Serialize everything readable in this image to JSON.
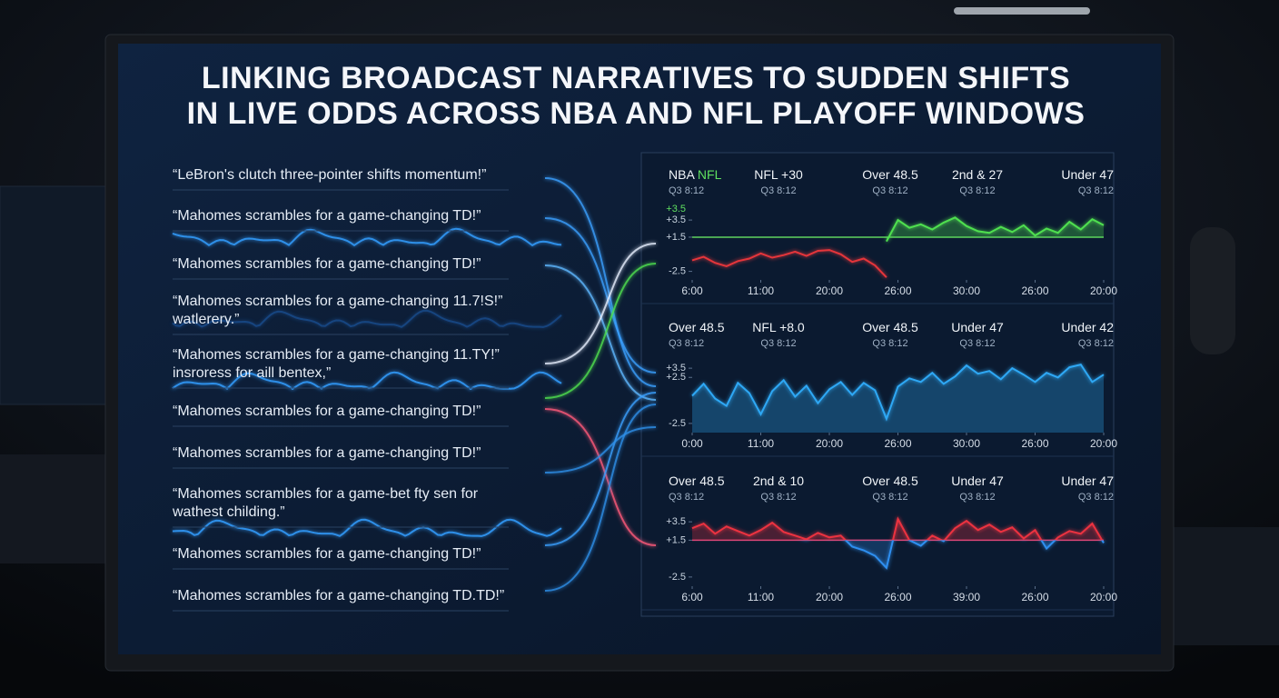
{
  "title": [
    "LINKING BROADCAST NARRATIVES TO SUDDEN SHIFTS",
    "IN LIVE ODDS ACROSS NBA AND NFL PLAYOFF WINDOWS"
  ],
  "quotes": [
    {
      "lines": [
        "“LeBron's clutch three-pointer shifts momentum!”"
      ]
    },
    {
      "lines": [
        "“Mahomes scrambles for a game-changing TD!”"
      ]
    },
    {
      "lines": [
        "“Mahomes scrambles for a game-changing TD!”"
      ]
    },
    {
      "lines": [
        "“Mahomes scrambles for a game-changing 11.7!S!”",
        "watlerery.”"
      ]
    },
    {
      "lines": [
        "“Mahomes scrambles for a game-changing 11.TY!”",
        "insroress for aill bentex,”"
      ]
    },
    {
      "lines": [
        "“Mahomes scrambles for a game-changing TD!”"
      ]
    },
    {
      "lines": [
        "“Mahomes scrambles for a game-changing TD!”"
      ]
    },
    {
      "lines": [
        "“Mahomes scrambles for a game-bet fty sen for",
        "wathest childing.”"
      ]
    },
    {
      "lines": [
        "“Mahomes scrambles for a game-changing TD!”"
      ]
    },
    {
      "lines": [
        "“Mahomes scrambles for a game-changing TD.TD!”"
      ]
    }
  ],
  "chart_data": [
    {
      "type": "line",
      "headers": [
        {
          "label": "NBA",
          "highlight": "NFL",
          "time": "Q3 8:12"
        },
        {
          "label": "NFL +30",
          "time": "Q3 8:12"
        },
        {
          "label": "Over 48.5",
          "time": "Q3 8:12"
        },
        {
          "label": "2nd & 27",
          "time": "Q3 8:12"
        },
        {
          "label": "Under 47",
          "time": "Q3 8:12"
        }
      ],
      "level_label": "+3.5",
      "x": [
        0,
        1,
        2,
        3,
        4,
        5,
        6,
        7,
        8,
        9,
        10,
        11,
        12,
        13,
        14,
        15,
        16,
        17,
        18,
        19,
        20,
        21,
        22,
        23,
        24,
        25,
        26,
        27,
        28,
        29,
        30,
        31,
        32,
        33,
        34,
        35,
        36
      ],
      "xlim": [
        0,
        36
      ],
      "xticks": [
        {
          "value": 0,
          "label": "6:00"
        },
        {
          "value": 6,
          "label": "11:00"
        },
        {
          "value": 12,
          "label": "20:00"
        },
        {
          "value": 18,
          "label": "26:00"
        },
        {
          "value": 24,
          "label": "30:00"
        },
        {
          "value": 30,
          "label": "26:00"
        },
        {
          "value": 36,
          "label": "20:00"
        }
      ],
      "ylim": [
        -3.5,
        5
      ],
      "yticks": [
        {
          "value": 3.5,
          "label": "+3.5"
        },
        {
          "value": 1.5,
          "label": "+1.5"
        },
        -2.5
      ],
      "baseline": 1.5,
      "baseline_color": "#5fd35f",
      "series": [
        {
          "color": "#e5343a",
          "values": [
            -1.2,
            -0.8,
            -1.5,
            -1.9,
            -1.3,
            -1.0,
            -0.4,
            -0.9,
            -0.6,
            -0.2,
            -0.7,
            -0.1,
            0.0,
            -0.5,
            -1.4,
            -1.0,
            -1.8,
            -3.2,
            null,
            null,
            null,
            null,
            null,
            null,
            null,
            null,
            null,
            null,
            null,
            null,
            null,
            null,
            null,
            null,
            null,
            null,
            null
          ]
        },
        {
          "color": "#4fe04f",
          "fill": "baseline",
          "values": [
            null,
            null,
            null,
            null,
            null,
            null,
            null,
            null,
            null,
            null,
            null,
            null,
            null,
            null,
            null,
            null,
            null,
            1.0,
            3.5,
            2.6,
            3.0,
            2.4,
            3.2,
            3.8,
            2.8,
            2.2,
            2.0,
            2.7,
            2.1,
            2.9,
            1.7,
            2.5,
            2.0,
            3.3,
            2.4,
            3.6,
            2.9
          ]
        }
      ]
    },
    {
      "type": "line",
      "headers": [
        {
          "label": "Over 48.5",
          "time": "Q3 8:12"
        },
        {
          "label": "NFL +8.0",
          "time": "Q3 8:12"
        },
        {
          "label": "Over 48.5",
          "time": "Q3 8:12"
        },
        {
          "label": "Under 47",
          "time": "Q3 8:12"
        },
        {
          "label": "Under 42",
          "time": "Q3 8:12"
        }
      ],
      "x": [
        0,
        1,
        2,
        3,
        4,
        5,
        6,
        7,
        8,
        9,
        10,
        11,
        12,
        13,
        14,
        15,
        16,
        17,
        18,
        19,
        20,
        21,
        22,
        23,
        24,
        25,
        26,
        27,
        28,
        29,
        30,
        31,
        32,
        33,
        34,
        35,
        36
      ],
      "xlim": [
        0,
        36
      ],
      "xticks": [
        {
          "value": 0,
          "label": "0:00"
        },
        {
          "value": 6,
          "label": "11:00"
        },
        {
          "value": 12,
          "label": "20:00"
        },
        {
          "value": 18,
          "label": "26:00"
        },
        {
          "value": 24,
          "label": "30:00"
        },
        {
          "value": 30,
          "label": "26:00"
        },
        {
          "value": 36,
          "label": "20:00"
        }
      ],
      "ylim": [
        -3.5,
        4.5
      ],
      "yticks": [
        {
          "value": 3.5,
          "label": "+3.5"
        },
        {
          "value": 2.5,
          "label": "+2.5"
        },
        -2.5
      ],
      "series": [
        {
          "color": "#2ea8f5",
          "fill": "bottom",
          "values": [
            0.5,
            1.8,
            0.2,
            -0.6,
            1.9,
            0.8,
            -1.5,
            1.0,
            2.2,
            0.4,
            1.6,
            -0.3,
            1.2,
            2.0,
            0.6,
            1.9,
            1.1,
            -2.0,
            1.5,
            2.4,
            2.0,
            3.0,
            1.8,
            2.6,
            3.8,
            2.9,
            3.2,
            2.3,
            3.5,
            2.8,
            2.0,
            3.0,
            2.5,
            3.6,
            3.9,
            2.0,
            2.8
          ]
        }
      ]
    },
    {
      "type": "line",
      "headers": [
        {
          "label": "Over 48.5",
          "time": "Q3 8:12"
        },
        {
          "label": "2nd & 10",
          "time": "Q3 8:12"
        },
        {
          "label": "Over 48.5",
          "time": "Q3 8:12"
        },
        {
          "label": "Under 47",
          "time": "Q3 8:12"
        },
        {
          "label": "Under 47",
          "time": "Q3 8:12"
        }
      ],
      "x": [
        0,
        1,
        2,
        3,
        4,
        5,
        6,
        7,
        8,
        9,
        10,
        11,
        12,
        13,
        14,
        15,
        16,
        17,
        18,
        19,
        20,
        21,
        22,
        23,
        24,
        25,
        26,
        27,
        28,
        29,
        30,
        31,
        32,
        33,
        34,
        35,
        36
      ],
      "xlim": [
        0,
        36
      ],
      "xticks": [
        {
          "value": 0,
          "label": "6:00"
        },
        {
          "value": 6,
          "label": "11:00"
        },
        {
          "value": 12,
          "label": "20:00"
        },
        {
          "value": 18,
          "label": "26:00"
        },
        {
          "value": 24,
          "label": "39:00"
        },
        {
          "value": 30,
          "label": "26:00"
        },
        {
          "value": 36,
          "label": "20:00"
        }
      ],
      "ylim": [
        -3.5,
        4.5
      ],
      "yticks": [
        {
          "value": 3.5,
          "label": "+3.5"
        },
        {
          "value": 1.5,
          "label": "+1.5"
        },
        -2.5
      ],
      "baseline": 1.5,
      "baseline_color": "#e0487a",
      "series": [
        {
          "color_above": "#ec3340",
          "color_below": "#2e8ff0",
          "fill": "baseline",
          "values": [
            2.8,
            3.3,
            2.2,
            3.0,
            2.5,
            2.0,
            2.6,
            3.4,
            2.4,
            2.0,
            1.6,
            2.3,
            1.8,
            2.0,
            0.8,
            0.4,
            -0.2,
            -1.5,
            3.8,
            1.5,
            0.9,
            2.0,
            1.4,
            2.8,
            3.6,
            2.6,
            3.2,
            2.4,
            2.9,
            1.7,
            2.6,
            0.6,
            1.8,
            2.5,
            2.2,
            3.3,
            1.2
          ]
        }
      ]
    }
  ]
}
